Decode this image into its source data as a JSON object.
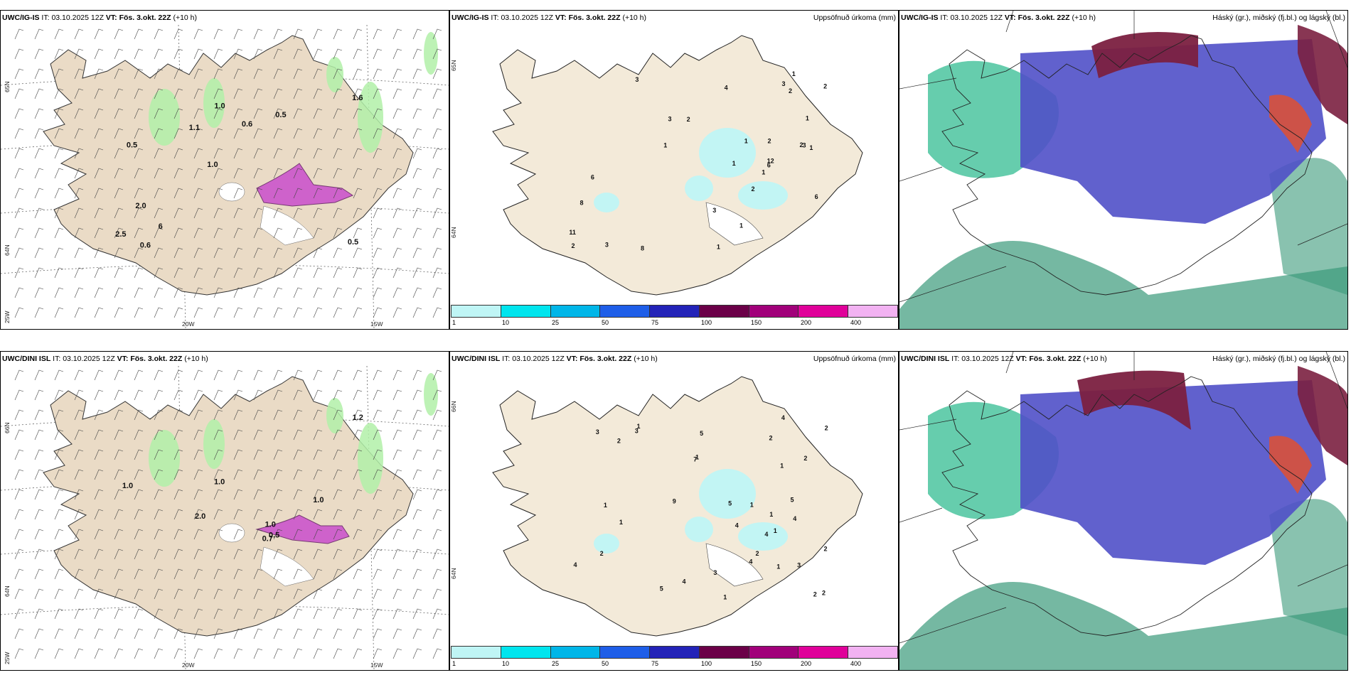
{
  "panels": [
    {
      "id": "p1",
      "model": "UWC/IG-IS",
      "it_label": "IT:",
      "it": "03.10.2025 12Z",
      "vt_label": "VT:",
      "vt": "Fös. 3.okt. 22Z",
      "lead": "(+10 h)",
      "right_title": "",
      "kind": "wind-precip",
      "labels": [
        "0.5",
        "0.5",
        "1.6",
        "1.0",
        "0.5",
        "0.6",
        "1.0",
        "0.6",
        "2.0",
        "1.1",
        "2.5",
        "6"
      ],
      "lat_labels": [
        "65N",
        "64N"
      ],
      "lon_labels": [
        "20W",
        "15W",
        "25W"
      ]
    },
    {
      "id": "p2",
      "model": "UWC/IG-IS",
      "it_label": "IT:",
      "it": "03.10.2025 12Z",
      "vt_label": "VT:",
      "vt": "Fös. 3.okt. 22Z",
      "lead": "(+10 h)",
      "right_title": "Uppsöfnuð úrkoma (mm)",
      "kind": "accum",
      "labels": [
        "2",
        "2",
        "3",
        "1",
        "3",
        "2",
        "1",
        "2",
        "3",
        "4",
        "3",
        "8",
        "1",
        "1",
        "1",
        "12",
        "1",
        "8",
        "1",
        "3",
        "6",
        "2",
        "6",
        "11",
        "6",
        "2",
        "3",
        "1",
        "1",
        "2"
      ],
      "lat_labels": [
        "65N",
        "64N"
      ]
    },
    {
      "id": "p3",
      "model": "UWC/IG-IS",
      "it_label": "IT:",
      "it": "03.10.2025 12Z",
      "vt_label": "VT:",
      "vt": "Fös. 3.okt. 22Z",
      "lead": "(+10 h)",
      "right_title": "Háský (gr.), miðský (fj.bl.) og lágský (bl.)",
      "kind": "clouds"
    },
    {
      "id": "p4",
      "model": "UWC/DINI ISL",
      "it_label": "IT:",
      "it": "03.10.2025 12Z",
      "vt_label": "VT:",
      "vt": "Fös. 3.okt. 22Z",
      "lead": "(+10 h)",
      "right_title": "",
      "kind": "wind-precip",
      "labels": [
        "0.5",
        "1.0",
        "1.2",
        "0.7",
        "2.0",
        "1.0",
        "1.0",
        "1.0"
      ],
      "lat_labels": [
        "66N",
        "64N"
      ],
      "lon_labels": [
        "20W",
        "15W",
        "25W"
      ]
    },
    {
      "id": "p5",
      "model": "UWC/DINI ISL",
      "it_label": "IT:",
      "it": "03.10.2025 12Z",
      "vt_label": "VT:",
      "vt": "Fös. 3.okt. 22Z",
      "lead": "(+10 h)",
      "right_title": "Uppsöfnuð úrkoma (mm)",
      "kind": "accum",
      "labels": [
        "2",
        "2",
        "2",
        "1",
        "1",
        "1",
        "1",
        "4",
        "4",
        "4",
        "1",
        "2",
        "3",
        "4",
        "4",
        "5",
        "1",
        "2",
        "7",
        "5",
        "3",
        "3",
        "5",
        "1",
        "4",
        "5",
        "9",
        "2",
        "1",
        "2",
        "2",
        "1",
        "1",
        "4",
        "3",
        "2"
      ],
      "lat_labels": [
        "66N",
        "64N"
      ]
    },
    {
      "id": "p6",
      "model": "UWC/DINI ISL",
      "it_label": "IT:",
      "it": "03.10.2025 12Z",
      "vt_label": "VT:",
      "vt": "Fös. 3.okt. 22Z",
      "lead": "(+10 h)",
      "right_title": "Háský (gr.), miðský (fj.bl.) og lágský (bl.)",
      "kind": "clouds"
    }
  ],
  "colorbar": {
    "ticks": [
      "1",
      "10",
      "25",
      "50",
      "75",
      "100",
      "150",
      "200",
      "400"
    ],
    "colors": [
      "#bff5f5",
      "#00e5ee",
      "#00b6e8",
      "#1e5ee8",
      "#2323b8",
      "#6b0048",
      "#a1007a",
      "#e0009a",
      "#f2b2f2"
    ]
  },
  "colors": {
    "land": "#f3ead9",
    "land_tan": "#eadbc6",
    "precip_green": "#b2f0a8",
    "snow_magenta": "#cc55cc",
    "high_cloud": "#7b2040",
    "mid_cloud": "#5050c8",
    "low_cloud": "#3a9a7a"
  }
}
